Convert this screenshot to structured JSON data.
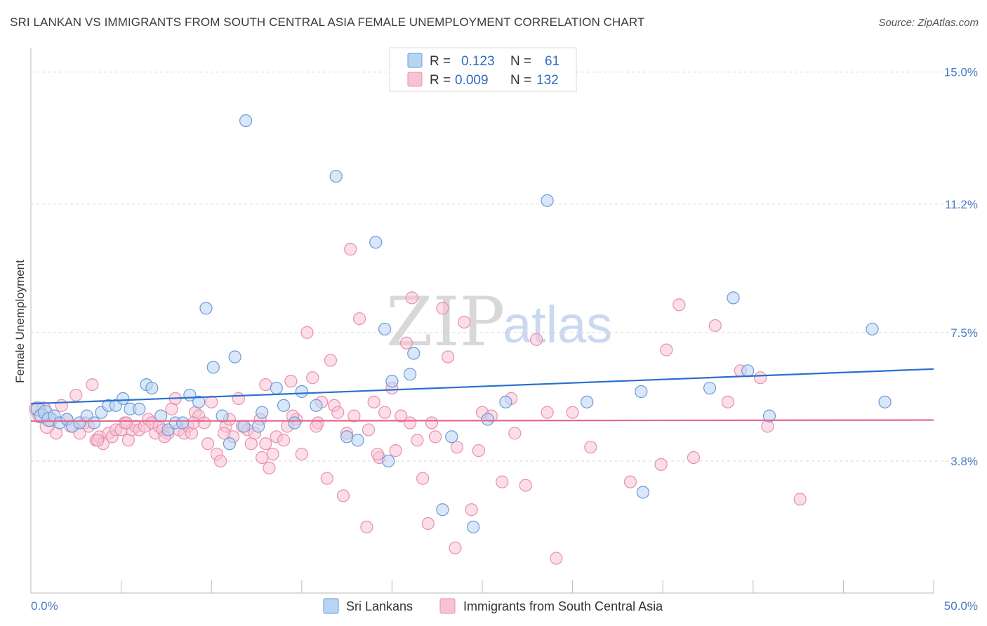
{
  "header": {
    "title": "SRI LANKAN VS IMMIGRANTS FROM SOUTH CENTRAL ASIA FEMALE UNEMPLOYMENT CORRELATION CHART",
    "source": "Source: ZipAtlas.com"
  },
  "watermark": {
    "zip": "ZIP",
    "atlas": "atlas"
  },
  "legend_top": {
    "blue": {
      "r_label": "R =",
      "r_value": "0.123",
      "n_label": "N =",
      "n_value": "61"
    },
    "pink": {
      "r_label": "R =",
      "r_value": "0.009",
      "n_label": "N =",
      "n_value": "132"
    }
  },
  "colors": {
    "blue_fill": "#b9d3f3",
    "blue_stroke": "#6a9bd8",
    "blue_line": "#2a6fd0",
    "pink_fill": "#f7c3d4",
    "pink_stroke": "#e98fae",
    "pink_line": "#e8668f",
    "grid": "#d9d9d9",
    "axis_label": "#4a7cc4"
  },
  "chart_data": {
    "type": "scatter",
    "title": "SRI LANKAN VS IMMIGRANTS FROM SOUTH CENTRAL ASIA FEMALE UNEMPLOYMENT CORRELATION CHART",
    "xlabel": "",
    "ylabel": "Female Unemployment",
    "xlim": [
      0,
      50
    ],
    "ylim": [
      0,
      15.5
    ],
    "x_tick_labels": [
      "0.0%",
      "50.0%"
    ],
    "y_ticks": [
      3.8,
      7.5,
      11.2,
      15.0
    ],
    "y_tick_labels": [
      "3.8%",
      "7.5%",
      "11.2%",
      "15.0%"
    ],
    "grid": "horizontal dashed",
    "legend_placement": "top-center and bottom-center",
    "series": [
      {
        "name": "Sri Lankans",
        "color": "#6a9bd8",
        "trend": {
          "x": [
            0,
            50
          ],
          "y": [
            5.45,
            6.45
          ]
        },
        "points": [
          [
            0.4,
            5.3
          ],
          [
            0.6,
            5.1
          ],
          [
            0.8,
            5.2
          ],
          [
            1.0,
            5.0
          ],
          [
            1.3,
            5.1
          ],
          [
            1.6,
            4.9
          ],
          [
            2.0,
            5.0
          ],
          [
            2.3,
            4.8
          ],
          [
            2.7,
            4.9
          ],
          [
            3.1,
            5.1
          ],
          [
            3.5,
            4.9
          ],
          [
            3.9,
            5.2
          ],
          [
            4.3,
            5.4
          ],
          [
            4.7,
            5.4
          ],
          [
            5.1,
            5.6
          ],
          [
            5.5,
            5.3
          ],
          [
            6.0,
            5.3
          ],
          [
            6.4,
            6.0
          ],
          [
            6.7,
            5.9
          ],
          [
            7.2,
            5.1
          ],
          [
            7.6,
            4.7
          ],
          [
            8.0,
            4.9
          ],
          [
            8.4,
            4.9
          ],
          [
            8.8,
            5.7
          ],
          [
            9.3,
            5.5
          ],
          [
            9.7,
            8.2
          ],
          [
            10.1,
            6.5
          ],
          [
            10.6,
            5.1
          ],
          [
            11.0,
            4.3
          ],
          [
            11.3,
            6.8
          ],
          [
            11.8,
            4.8
          ],
          [
            11.9,
            13.6
          ],
          [
            12.6,
            4.8
          ],
          [
            12.8,
            5.2
          ],
          [
            13.6,
            5.9
          ],
          [
            14.0,
            5.4
          ],
          [
            14.6,
            4.9
          ],
          [
            15.0,
            5.8
          ],
          [
            15.8,
            5.4
          ],
          [
            16.9,
            12.0
          ],
          [
            17.5,
            4.5
          ],
          [
            18.1,
            4.4
          ],
          [
            19.1,
            10.1
          ],
          [
            19.6,
            7.6
          ],
          [
            20.0,
            6.1
          ],
          [
            21.0,
            6.3
          ],
          [
            21.2,
            6.9
          ],
          [
            22.8,
            2.4
          ],
          [
            23.3,
            4.5
          ],
          [
            24.5,
            1.9
          ],
          [
            25.3,
            5.0
          ],
          [
            26.3,
            5.5
          ],
          [
            28.6,
            11.3
          ],
          [
            30.8,
            5.5
          ],
          [
            33.8,
            5.8
          ],
          [
            33.9,
            2.9
          ],
          [
            37.6,
            5.9
          ],
          [
            38.9,
            8.5
          ],
          [
            39.7,
            6.4
          ],
          [
            40.9,
            5.1
          ],
          [
            46.6,
            7.6
          ],
          [
            47.3,
            5.5
          ],
          [
            19.8,
            3.8
          ]
        ]
      },
      {
        "name": "Immigrants from South Central Asia",
        "color": "#e98fae",
        "trend": {
          "x": [
            0,
            50
          ],
          "y": [
            4.95,
            4.98
          ]
        },
        "points": [
          [
            0.3,
            5.3
          ],
          [
            0.5,
            5.1
          ],
          [
            0.7,
            5.3
          ],
          [
            0.9,
            4.8
          ],
          [
            1.1,
            5.0
          ],
          [
            1.4,
            4.6
          ],
          [
            1.7,
            5.4
          ],
          [
            2.0,
            5.0
          ],
          [
            2.2,
            4.8
          ],
          [
            2.5,
            5.7
          ],
          [
            2.7,
            4.6
          ],
          [
            3.0,
            4.9
          ],
          [
            3.2,
            4.8
          ],
          [
            3.4,
            6.0
          ],
          [
            3.6,
            4.4
          ],
          [
            3.8,
            4.5
          ],
          [
            4.0,
            4.3
          ],
          [
            4.3,
            4.6
          ],
          [
            4.5,
            4.5
          ],
          [
            4.7,
            4.7
          ],
          [
            5.0,
            4.7
          ],
          [
            5.2,
            4.9
          ],
          [
            5.4,
            4.4
          ],
          [
            5.6,
            4.7
          ],
          [
            5.8,
            4.8
          ],
          [
            6.0,
            4.7
          ],
          [
            6.3,
            4.8
          ],
          [
            6.5,
            5.0
          ],
          [
            6.7,
            4.9
          ],
          [
            6.9,
            4.6
          ],
          [
            7.1,
            4.8
          ],
          [
            7.3,
            4.7
          ],
          [
            7.6,
            4.6
          ],
          [
            7.8,
            5.3
          ],
          [
            8.0,
            5.6
          ],
          [
            8.2,
            4.7
          ],
          [
            8.5,
            4.6
          ],
          [
            8.7,
            4.8
          ],
          [
            8.9,
            4.6
          ],
          [
            9.1,
            5.2
          ],
          [
            9.3,
            5.1
          ],
          [
            9.6,
            4.9
          ],
          [
            9.8,
            4.3
          ],
          [
            10.0,
            5.5
          ],
          [
            10.3,
            4.0
          ],
          [
            10.5,
            3.8
          ],
          [
            10.8,
            4.8
          ],
          [
            11.0,
            5.0
          ],
          [
            11.2,
            4.5
          ],
          [
            11.5,
            5.6
          ],
          [
            11.7,
            4.8
          ],
          [
            12.0,
            4.7
          ],
          [
            12.2,
            4.3
          ],
          [
            12.4,
            4.6
          ],
          [
            12.7,
            5.0
          ],
          [
            13.0,
            6.0
          ],
          [
            13.2,
            3.6
          ],
          [
            13.4,
            4.0
          ],
          [
            13.6,
            4.5
          ],
          [
            14.0,
            4.4
          ],
          [
            14.2,
            4.8
          ],
          [
            14.4,
            6.1
          ],
          [
            14.7,
            5.0
          ],
          [
            15.0,
            4.0
          ],
          [
            15.3,
            7.5
          ],
          [
            15.6,
            6.2
          ],
          [
            15.9,
            4.9
          ],
          [
            16.1,
            5.5
          ],
          [
            16.4,
            3.3
          ],
          [
            16.6,
            6.7
          ],
          [
            16.8,
            5.4
          ],
          [
            17.0,
            5.2
          ],
          [
            17.3,
            2.8
          ],
          [
            17.7,
            9.9
          ],
          [
            17.9,
            5.1
          ],
          [
            18.2,
            7.9
          ],
          [
            18.6,
            1.9
          ],
          [
            19.0,
            5.5
          ],
          [
            19.3,
            3.9
          ],
          [
            19.6,
            5.2
          ],
          [
            20.0,
            5.9
          ],
          [
            20.2,
            4.1
          ],
          [
            20.5,
            5.1
          ],
          [
            20.8,
            7.2
          ],
          [
            21.1,
            8.5
          ],
          [
            21.4,
            4.4
          ],
          [
            21.7,
            3.3
          ],
          [
            22.0,
            2.0
          ],
          [
            22.4,
            4.5
          ],
          [
            22.8,
            8.2
          ],
          [
            23.1,
            6.8
          ],
          [
            23.5,
            1.3
          ],
          [
            24.0,
            7.8
          ],
          [
            24.4,
            2.4
          ],
          [
            25.0,
            5.2
          ],
          [
            25.5,
            5.1
          ],
          [
            26.1,
            3.2
          ],
          [
            26.6,
            5.6
          ],
          [
            27.4,
            3.1
          ],
          [
            28.0,
            7.3
          ],
          [
            28.6,
            5.2
          ],
          [
            29.1,
            1.0
          ],
          [
            31.0,
            4.2
          ],
          [
            33.2,
            3.2
          ],
          [
            35.2,
            7.0
          ],
          [
            35.9,
            8.3
          ],
          [
            36.7,
            3.9
          ],
          [
            37.9,
            7.7
          ],
          [
            38.6,
            5.5
          ],
          [
            39.3,
            6.4
          ],
          [
            40.4,
            6.2
          ],
          [
            42.6,
            2.7
          ],
          [
            23.6,
            4.2
          ],
          [
            15.8,
            4.8
          ],
          [
            13.0,
            4.3
          ],
          [
            10.7,
            4.6
          ],
          [
            9.0,
            4.9
          ],
          [
            7.4,
            4.5
          ],
          [
            5.3,
            4.9
          ],
          [
            3.7,
            4.4
          ],
          [
            17.5,
            4.6
          ],
          [
            19.2,
            4.0
          ],
          [
            21.0,
            4.9
          ],
          [
            24.8,
            4.1
          ],
          [
            26.8,
            4.6
          ],
          [
            30.0,
            5.2
          ],
          [
            34.9,
            3.7
          ],
          [
            40.8,
            4.8
          ],
          [
            12.8,
            3.9
          ],
          [
            14.5,
            5.1
          ],
          [
            18.7,
            4.7
          ],
          [
            22.2,
            4.9
          ]
        ]
      }
    ]
  },
  "legend_bottom": {
    "series1": "Sri Lankans",
    "series2": "Immigrants from South Central Asia"
  }
}
